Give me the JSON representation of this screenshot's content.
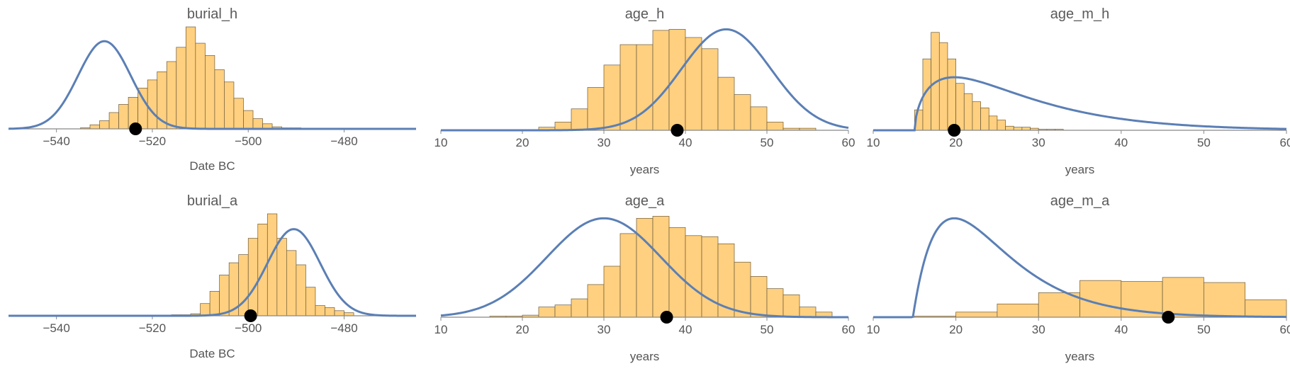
{
  "chart_data": [
    {
      "type": "histogram",
      "title": "burial_h",
      "xlabel": "Date BC",
      "xlim": [
        -550,
        -465
      ],
      "xticks": [
        -540,
        -520,
        -500,
        -480
      ],
      "tick_labels": [
        "−540",
        "−520",
        "−500",
        "−480"
      ],
      "bin_start": -535,
      "bin_width": 2,
      "hist_heights": [
        0.01,
        0.04,
        0.08,
        0.16,
        0.24,
        0.31,
        0.4,
        0.48,
        0.56,
        0.66,
        0.8,
        1.0,
        0.84,
        0.72,
        0.58,
        0.46,
        0.3,
        0.18,
        0.1,
        0.05,
        0.02,
        0.01,
        0.01
      ],
      "curve": {
        "dist": "normal",
        "mean": -530,
        "sd": 5.5,
        "peak": 0.86
      },
      "marker_x": -523.5
    },
    {
      "type": "histogram",
      "title": "age_h",
      "xlabel": "years",
      "xlim": [
        10,
        60
      ],
      "xticks": [
        10,
        20,
        30,
        40,
        50,
        60
      ],
      "tick_labels": [
        "10",
        "20",
        "30",
        "40",
        "50",
        "60"
      ],
      "bin_start": 22,
      "bin_width": 2,
      "hist_heights": [
        0.03,
        0.08,
        0.21,
        0.42,
        0.64,
        0.84,
        0.84,
        0.98,
        0.99,
        0.91,
        0.8,
        0.52,
        0.35,
        0.23,
        0.08,
        0.02,
        0.02
      ],
      "curve": {
        "dist": "normal",
        "mean": 45,
        "sd": 5.5,
        "peak": 0.99
      },
      "marker_x": 39
    },
    {
      "type": "histogram",
      "title": "age_m_h",
      "xlabel": "years",
      "xlim": [
        10,
        60
      ],
      "xticks": [
        10,
        20,
        30,
        40,
        50,
        60
      ],
      "tick_labels": [
        "10",
        "20",
        "30",
        "40",
        "50",
        "60"
      ],
      "bin_start": 15,
      "bin_width": 1,
      "hist_heights": [
        0.2,
        0.7,
        0.96,
        0.86,
        0.7,
        0.46,
        0.36,
        0.28,
        0.22,
        0.14,
        0.1,
        0.04,
        0.03,
        0.03,
        0.02,
        0.01,
        0.01,
        0.01
      ],
      "curve": {
        "dist": "shifted-gamma",
        "shift": 15,
        "shape": 1.6,
        "scale": 8,
        "peak": 0.52
      },
      "marker_x": 19.8
    },
    {
      "type": "histogram",
      "title": "burial_a",
      "xlabel": "Date BC",
      "xlim": [
        -550,
        -465
      ],
      "xticks": [
        -540,
        -520,
        -500,
        -480
      ],
      "tick_labels": [
        "−540",
        "−520",
        "−500",
        "−480"
      ],
      "bin_start": -516,
      "bin_width": 2,
      "hist_heights": [
        0.01,
        0.01,
        0.02,
        0.12,
        0.24,
        0.4,
        0.52,
        0.6,
        0.76,
        0.9,
        1.0,
        0.76,
        0.64,
        0.5,
        0.28,
        0.1,
        0.08,
        0.05,
        0.03
      ],
      "curve": {
        "dist": "normal",
        "mean": -490.5,
        "sd": 5.5,
        "peak": 0.85
      },
      "marker_x": -499.5
    },
    {
      "type": "histogram",
      "title": "age_a",
      "xlabel": "years",
      "xlim": [
        10,
        60
      ],
      "xticks": [
        10,
        20,
        30,
        40,
        50,
        60
      ],
      "tick_labels": [
        "10",
        "20",
        "30",
        "40",
        "50",
        "60"
      ],
      "bin_start": 16,
      "bin_width": 2,
      "hist_heights": [
        0.01,
        0.01,
        0.02,
        0.1,
        0.12,
        0.18,
        0.32,
        0.5,
        0.82,
        0.97,
        0.99,
        0.88,
        0.8,
        0.79,
        0.72,
        0.54,
        0.4,
        0.28,
        0.22,
        0.1,
        0.05
      ],
      "curve": {
        "dist": "normal",
        "mean": 30,
        "sd": 7,
        "peak": 0.97
      },
      "marker_x": 37.7
    },
    {
      "type": "histogram",
      "title": "age_m_a",
      "xlabel": "years",
      "xlim": [
        10,
        60
      ],
      "xticks": [
        10,
        20,
        30,
        40,
        50,
        60
      ],
      "tick_labels": [
        "10",
        "20",
        "30",
        "40",
        "50",
        "60"
      ],
      "bin_start": 15,
      "bin_width": 5,
      "hist_heights": [
        0.01,
        0.05,
        0.13,
        0.24,
        0.36,
        0.35,
        0.39,
        0.34,
        0.17
      ],
      "curve": {
        "dist": "shifted-gamma",
        "shift": 14.8,
        "shape": 2,
        "scale": 5,
        "peak": 0.97
      },
      "marker_x": 45.7
    }
  ]
}
